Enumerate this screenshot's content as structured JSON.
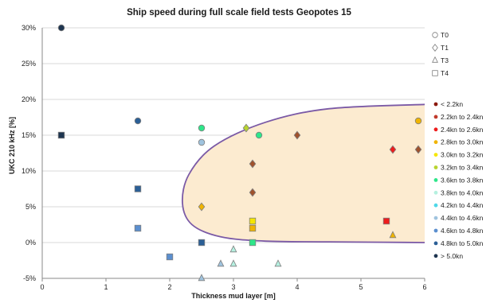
{
  "chart_data": {
    "type": "scatter",
    "title": "Ship speed during full scale field tests Geopotes 15",
    "xlabel": "Thickness mud layer [m]",
    "ylabel": "UKC 210 kHz [%]",
    "xlim": [
      0,
      6
    ],
    "ylim": [
      -5,
      30
    ],
    "x_ticks": [
      "0",
      "1",
      "2",
      "3",
      "4",
      "5",
      "6"
    ],
    "y_ticks": [
      "-5%",
      "0%",
      "5%",
      "10%",
      "15%",
      "20%",
      "25%",
      "30%"
    ],
    "grid": "horizontal",
    "legend_tests": [
      {
        "label": "T0",
        "marker": "circle"
      },
      {
        "label": "T1",
        "marker": "diamond"
      },
      {
        "label": "T3",
        "marker": "triangle"
      },
      {
        "label": "T4",
        "marker": "square"
      }
    ],
    "legend_speeds": [
      {
        "label": "< 2.2kn",
        "color": "#8b1a0e"
      },
      {
        "label": "2.2kn to 2.4kn",
        "color": "#c0392b"
      },
      {
        "label": "2.4kn to 2.6kn",
        "color": "#ee1c1c"
      },
      {
        "label": "2.8kn to 3.0kn",
        "color": "#f0b400"
      },
      {
        "label": "3.0kn to 3.2kn",
        "color": "#f5e600"
      },
      {
        "label": "3.2kn to 3.4kn",
        "color": "#b8d430"
      },
      {
        "label": "3.6kn to 3.8kn",
        "color": "#2ee68a"
      },
      {
        "label": "3.8kn to 4.0kn",
        "color": "#b5f0e0"
      },
      {
        "label": "4.2kn to 4.4kn",
        "color": "#4fd8e8"
      },
      {
        "label": "4.4kn to 4.6kn",
        "color": "#9fc3de"
      },
      {
        "label": "4.6kn to 4.8kn",
        "color": "#5b8fcf"
      },
      {
        "label": "4.8kn to 5.0kn",
        "color": "#2b5f96"
      },
      {
        "label": "> 5.0kn",
        "color": "#1e3550"
      }
    ],
    "region": {
      "fill": "#fcebd0",
      "stroke": "#7b5aa6",
      "outline": [
        [
          6,
          19.3
        ],
        [
          4.5,
          18.7
        ],
        [
          3.5,
          16.8
        ],
        [
          2.7,
          13.5
        ],
        [
          2.3,
          9.5
        ],
        [
          2.2,
          5.5
        ],
        [
          2.35,
          2.5
        ],
        [
          2.8,
          0.8
        ],
        [
          3.5,
          0.2
        ],
        [
          4.5,
          0.1
        ],
        [
          6,
          0.0
        ]
      ]
    },
    "series": [
      {
        "marker": "circle",
        "points": [
          {
            "x": 0.3,
            "y": 30,
            "color": "#1e3550"
          },
          {
            "x": 1.5,
            "y": 17,
            "color": "#2b5f96"
          },
          {
            "x": 2.5,
            "y": 16,
            "color": "#2ee68a"
          },
          {
            "x": 2.5,
            "y": 14,
            "color": "#9fc3de"
          },
          {
            "x": 3.4,
            "y": 15,
            "color": "#2ee68a"
          },
          {
            "x": 5.9,
            "y": 17,
            "color": "#f0b400"
          }
        ]
      },
      {
        "marker": "diamond",
        "points": [
          {
            "x": 3.2,
            "y": 16,
            "color": "#b8d430"
          },
          {
            "x": 3.3,
            "y": 11,
            "color": "#a0522d"
          },
          {
            "x": 3.3,
            "y": 7,
            "color": "#a0522d"
          },
          {
            "x": 4.0,
            "y": 15,
            "color": "#a0522d"
          },
          {
            "x": 5.5,
            "y": 13,
            "color": "#ee1c1c"
          },
          {
            "x": 5.9,
            "y": 13,
            "color": "#a0522d"
          },
          {
            "x": 2.5,
            "y": 5,
            "color": "#f0b400"
          }
        ]
      },
      {
        "marker": "triangle",
        "points": [
          {
            "x": 2.5,
            "y": -5,
            "color": "#9fc3de"
          },
          {
            "x": 2.8,
            "y": -3,
            "color": "#9fc3de"
          },
          {
            "x": 3.0,
            "y": -3,
            "color": "#b5f0e0"
          },
          {
            "x": 3.0,
            "y": -1,
            "color": "#b5f0e0"
          },
          {
            "x": 3.7,
            "y": -3,
            "color": "#b5f0e0"
          },
          {
            "x": 5.5,
            "y": 1,
            "color": "#f0b400"
          }
        ]
      },
      {
        "marker": "square",
        "points": [
          {
            "x": 0.3,
            "y": 15,
            "color": "#1e3550"
          },
          {
            "x": 1.5,
            "y": 7.5,
            "color": "#2b5f96"
          },
          {
            "x": 1.5,
            "y": 2,
            "color": "#5b8fcf"
          },
          {
            "x": 2.0,
            "y": -2,
            "color": "#5b8fcf"
          },
          {
            "x": 2.5,
            "y": 0,
            "color": "#2b5f96"
          },
          {
            "x": 3.3,
            "y": 3,
            "color": "#f5e600"
          },
          {
            "x": 3.3,
            "y": 2,
            "color": "#f0b400"
          },
          {
            "x": 3.3,
            "y": 0,
            "color": "#2ee68a"
          },
          {
            "x": 5.4,
            "y": 3,
            "color": "#ee1c1c"
          }
        ]
      }
    ]
  }
}
